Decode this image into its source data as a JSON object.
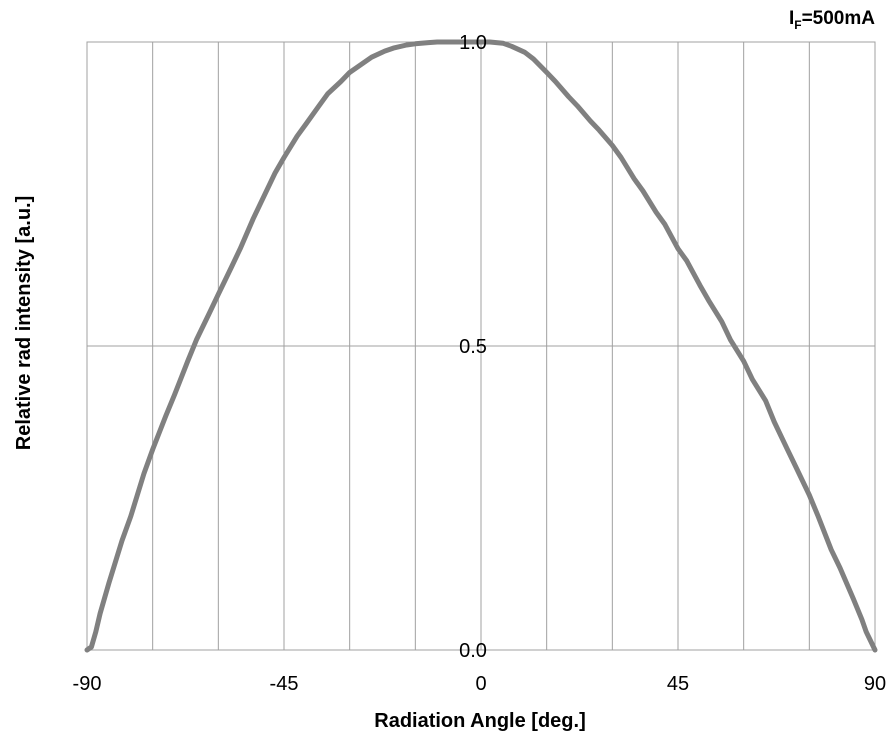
{
  "chart_data": {
    "type": "line",
    "title": "",
    "xlabel": "Radiation Angle [deg.]",
    "ylabel": "Relative rad intensity [a.u.]",
    "annotation": {
      "symbol": "I",
      "subscript": "F",
      "value": "=500mA"
    },
    "xlim": [
      -90,
      90
    ],
    "ylim": [
      0,
      1
    ],
    "xticks": [
      -90,
      -45,
      0,
      45,
      90
    ],
    "xtick_labels": [
      "-90",
      "-45",
      "0",
      "45",
      "90"
    ],
    "yticks": [
      0,
      0.5,
      1
    ],
    "ytick_labels": [
      "0.0",
      "0.5",
      "1.0"
    ],
    "x_gridlines": [
      -90,
      -75,
      -60,
      -45,
      -30,
      -15,
      0,
      15,
      30,
      45,
      60,
      75,
      90
    ],
    "y_gridlines": [
      0,
      0.5,
      1
    ],
    "grid": true,
    "line_color": "#808080",
    "grid_color": "#a0a0a0",
    "series": [
      {
        "x": [
          -90,
          -89,
          -88,
          -87,
          -85,
          -82,
          -80,
          -77,
          -75,
          -72,
          -70,
          -67,
          -65,
          -62,
          -60,
          -57,
          -55,
          -52,
          -50,
          -47,
          -45,
          -42,
          -40,
          -37,
          -35,
          -32,
          -30,
          -27,
          -25,
          -22,
          -20,
          -17,
          -15,
          -12,
          -10,
          -7,
          -5,
          -2,
          0,
          2,
          5,
          7,
          10,
          12,
          15,
          17,
          20,
          22,
          25,
          27,
          30,
          32,
          35,
          37,
          40,
          42,
          45,
          47,
          50,
          52,
          55,
          57,
          60,
          62,
          65,
          67,
          70,
          72,
          75,
          77,
          80,
          82,
          85,
          87,
          88,
          89,
          90
        ],
        "y": [
          0.0,
          0.005,
          0.03,
          0.06,
          0.11,
          0.18,
          0.22,
          0.29,
          0.33,
          0.385,
          0.42,
          0.475,
          0.51,
          0.555,
          0.585,
          0.63,
          0.66,
          0.71,
          0.74,
          0.785,
          0.81,
          0.845,
          0.865,
          0.895,
          0.915,
          0.935,
          0.95,
          0.965,
          0.975,
          0.985,
          0.99,
          0.995,
          0.997,
          0.999,
          1.0,
          1.0,
          1.0,
          1.0,
          1.0,
          1.0,
          0.998,
          0.993,
          0.983,
          0.972,
          0.95,
          0.935,
          0.91,
          0.895,
          0.87,
          0.855,
          0.83,
          0.81,
          0.775,
          0.755,
          0.72,
          0.7,
          0.66,
          0.64,
          0.6,
          0.575,
          0.54,
          0.51,
          0.475,
          0.445,
          0.41,
          0.375,
          0.33,
          0.3,
          0.255,
          0.22,
          0.165,
          0.135,
          0.085,
          0.05,
          0.03,
          0.015,
          0.0
        ]
      }
    ]
  }
}
